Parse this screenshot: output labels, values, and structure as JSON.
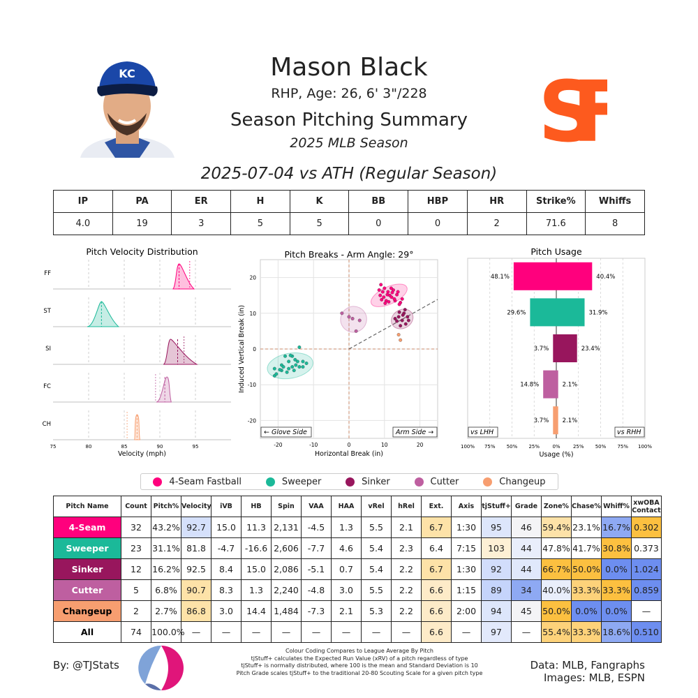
{
  "header": {
    "name": "Mason Black",
    "bio": "RHP, Age: 26, 6' 3\"/228",
    "title": "Season Pitching Summary",
    "season": "2025 MLB Season",
    "game": "2025-07-04 vs ATH (Regular Season)",
    "logo_text": "SF",
    "cap_text": "KC"
  },
  "colors": {
    "4-Seam Fastball": "#FF007D",
    "Sweeper": "#1BB999",
    "Sinker": "#98165D",
    "Cutter": "#BE5FA0",
    "Changeup": "#F79E70"
  },
  "stat_line": {
    "headers": [
      "IP",
      "PA",
      "ER",
      "H",
      "K",
      "BB",
      "HBP",
      "HR",
      "Strike%",
      "Whiffs"
    ],
    "values": [
      "4.0",
      "19",
      "3",
      "5",
      "5",
      "0",
      "0",
      "2",
      "71.6",
      "8"
    ]
  },
  "legend": [
    "4-Seam Fastball",
    "Sweeper",
    "Sinker",
    "Cutter",
    "Changeup"
  ],
  "chart_data": [
    {
      "type": "area",
      "title": "Pitch Velocity Distribution",
      "xlabel": "Velocity (mph)",
      "xlim": [
        75,
        100
      ],
      "x_ticks": [
        "75",
        "80",
        "85",
        "90",
        "95"
      ],
      "rows": [
        {
          "label": "FF",
          "color": "#FF007D",
          "min": 91.8,
          "max": 94.8,
          "peak": 92.7,
          "mean": 92.7,
          "league_mean": 94.2
        },
        {
          "label": "ST",
          "color": "#1BB999",
          "min": 79.8,
          "max": 84.2,
          "peak": 81.8,
          "mean": 81.8,
          "league_mean": null
        },
        {
          "label": "SI",
          "color": "#98165D",
          "min": 90.5,
          "max": 95.2,
          "peak": 91.5,
          "mean": 92.5,
          "league_mean": 93.4
        },
        {
          "label": "FC",
          "color": "#BE5FA0",
          "min": 89.5,
          "max": 91.6,
          "peak": 91.0,
          "mean": 90.7,
          "league_mean": 89.4
        },
        {
          "label": "CH",
          "color": "#F79E70",
          "min": 86.4,
          "max": 87.2,
          "peak": 86.8,
          "mean": 86.8,
          "league_mean": 85.4
        }
      ]
    },
    {
      "type": "scatter",
      "title": "Pitch Breaks - Arm Angle: 29°",
      "xlabel": "Horizontal Break (in)",
      "ylabel": "Induced Vertical Break (in)",
      "xlim": [
        -25,
        25
      ],
      "ylim": [
        -25,
        25
      ],
      "x_ticks": [
        "-20",
        "-10",
        "0",
        "10",
        "20"
      ],
      "y_ticks": [
        "20",
        "10",
        "0",
        "-10",
        "-20"
      ],
      "glove_label": "← Glove Side",
      "arm_label": "Arm Side →",
      "arm_angle_deg": 29,
      "series": [
        {
          "name": "4-Seam Fastball",
          "color": "#FF007D",
          "ellipse": {
            "cx": 11.3,
            "cy": 15.0,
            "rx": 5.5,
            "ry": 2.4,
            "angle": -25
          },
          "points": [
            [
              8.5,
              16.5
            ],
            [
              9.0,
              18.0
            ],
            [
              10.0,
              17.0
            ],
            [
              11.0,
              16.0
            ],
            [
              11.5,
              15.0
            ],
            [
              12.0,
              14.5
            ],
            [
              13.0,
              13.5
            ],
            [
              14.5,
              13.0
            ],
            [
              8.8,
              15.0
            ],
            [
              9.8,
              14.5
            ],
            [
              10.5,
              13.5
            ],
            [
              12.5,
              16.5
            ],
            [
              13.5,
              15.2
            ],
            [
              15.0,
              14.0
            ],
            [
              9.5,
              16.0
            ],
            [
              10.8,
              15.2
            ],
            [
              11.9,
              17.0
            ],
            [
              12.8,
              14.0
            ],
            [
              13.8,
              16.0
            ],
            [
              10.2,
              12.8
            ],
            [
              14.2,
              12.5
            ],
            [
              11.2,
              13.2
            ],
            [
              9.2,
              13.8
            ],
            [
              12.2,
              15.8
            ]
          ]
        },
        {
          "name": "Sweeper",
          "color": "#1BB999",
          "ellipse": {
            "cx": -16.6,
            "cy": -4.7,
            "rx": 6.5,
            "ry": 3.5,
            "angle": -10
          },
          "points": [
            [
              -21,
              -7.5
            ],
            [
              -21,
              -5.5
            ],
            [
              -19,
              -6
            ],
            [
              -19,
              -4.5
            ],
            [
              -17,
              -5.5
            ],
            [
              -17,
              -3.5
            ],
            [
              -16,
              -5
            ],
            [
              -15,
              -4.5
            ],
            [
              -14.5,
              -3.5
            ],
            [
              -14,
              -5
            ],
            [
              -13,
              -3.5
            ],
            [
              -13,
              -5
            ],
            [
              -18,
              -2
            ],
            [
              -16,
              -2
            ],
            [
              -14,
              0.5
            ],
            [
              -15.5,
              -6
            ],
            [
              -20.5,
              -7
            ],
            [
              -17.5,
              -6.5
            ],
            [
              -12,
              -4
            ],
            [
              -16.5,
              -1.8
            ],
            [
              -19.5,
              -5.8
            ],
            [
              -18.5,
              -5
            ],
            [
              -15.2,
              -3
            ]
          ]
        },
        {
          "name": "Sinker",
          "color": "#98165D",
          "ellipse": {
            "cx": 15.0,
            "cy": 8.4,
            "rx": 3.2,
            "ry": 2.6,
            "angle": -30
          },
          "points": [
            [
              13,
              8.5
            ],
            [
              14,
              9
            ],
            [
              15,
              8
            ],
            [
              15.5,
              10
            ],
            [
              16,
              7
            ],
            [
              16.5,
              9
            ],
            [
              14.5,
              6.5
            ],
            [
              15.8,
              11
            ],
            [
              13.5,
              7.8
            ],
            [
              16.8,
              8
            ],
            [
              15.2,
              9.5
            ],
            [
              14.2,
              10.3
            ]
          ]
        },
        {
          "name": "Cutter",
          "color": "#BE5FA0",
          "ellipse": {
            "cx": 1.3,
            "cy": 8.3,
            "rx": 3.7,
            "ry": 3.6,
            "angle": -30
          },
          "points": [
            [
              -2,
              10
            ],
            [
              0,
              9
            ],
            [
              1,
              8.5
            ],
            [
              2,
              5
            ],
            [
              3,
              8
            ]
          ]
        },
        {
          "name": "Changeup",
          "color": "#F79E70",
          "ellipse": null,
          "points": [
            [
              14,
              4
            ],
            [
              14.5,
              2.5
            ]
          ]
        }
      ]
    },
    {
      "type": "bar",
      "title": "Pitch Usage",
      "xlabel": "Usage (%)",
      "xlim": [
        -100,
        100
      ],
      "x_ticks": [
        "100%",
        "75%",
        "50%",
        "25%",
        "0%",
        "25%",
        "50%",
        "75%",
        "100%"
      ],
      "lhh_label": "vs LHH",
      "rhh_label": "vs RHH",
      "categories": [
        "4-Seam Fastball",
        "Sweeper",
        "Sinker",
        "Cutter",
        "Changeup"
      ],
      "series": [
        {
          "name": "vs LHH",
          "values": [
            48.1,
            29.6,
            3.7,
            14.8,
            3.7
          ],
          "labels": [
            "48.1%",
            "29.6%",
            "3.7%",
            "14.8%",
            "3.7%"
          ]
        },
        {
          "name": "vs RHH",
          "values": [
            40.4,
            31.9,
            23.4,
            2.1,
            2.1
          ],
          "labels": [
            "40.4%",
            "31.9%",
            "23.4%",
            "2.1%",
            "2.1%"
          ]
        }
      ],
      "colors": [
        "#FF007D",
        "#1BB999",
        "#98165D",
        "#BE5FA0",
        "#F79E70"
      ]
    },
    {
      "type": "table",
      "columns": [
        "Pitch Name",
        "Count",
        "Pitch%",
        "Velocity",
        "iVB",
        "HB",
        "Spin",
        "VAA",
        "HAA",
        "vRel",
        "hRel",
        "Ext.",
        "Axis",
        "tjStuff+",
        "Grade",
        "Zone%",
        "Chase%",
        "Whiff%",
        "xwOBA Contact"
      ],
      "rows": [
        {
          "pitch": "4-Seam",
          "pitch_color": "#FF007D",
          "pitch_text": "#fff",
          "cells": [
            "32",
            "43.2%",
            "92.7",
            "15.0",
            "11.3",
            "2,131",
            "-4.5",
            "1.3",
            "5.5",
            "2.1",
            "6.7",
            "1:30",
            "95",
            "46",
            "59.4%",
            "23.1%",
            "16.7%",
            "0.302"
          ],
          "cell_colors": {
            "3": "#d5e0fb",
            "11": "#fde2a8",
            "13": "#dde6fb",
            "14": "#f4f4f6",
            "15": "#fde2a8",
            "16": "#ffffff",
            "17": "#8ea9f3",
            "18": "#fcc040"
          }
        },
        {
          "pitch": "Sweeper",
          "pitch_color": "#1BB999",
          "pitch_text": "#fff",
          "cells": [
            "23",
            "31.1%",
            "81.8",
            "-4.7",
            "-16.6",
            "2,606",
            "-7.7",
            "4.6",
            "5.4",
            "2.3",
            "6.4",
            "7:15",
            "103",
            "44",
            "47.8%",
            "41.7%",
            "30.8%",
            "0.373"
          ],
          "cell_colors": {
            "13": "#fdf0d5",
            "14": "#e9eefb",
            "17": "#fcc040",
            "19": "#d5e0fb"
          }
        },
        {
          "pitch": "Sinker",
          "pitch_color": "#98165D",
          "pitch_text": "#fff",
          "cells": [
            "12",
            "16.2%",
            "92.5",
            "8.4",
            "15.0",
            "2,086",
            "-5.1",
            "0.7",
            "5.4",
            "2.2",
            "6.7",
            "1:30",
            "92",
            "44",
            "66.7%",
            "50.0%",
            "0.0%",
            "1.024"
          ],
          "cell_colors": {
            "11": "#fde2a8",
            "13": "#d2ddfb",
            "14": "#e0e8fb",
            "15": "#fcc040",
            "16": "#fcc040",
            "17": "#6d8ef0",
            "18": "#6d8ef0"
          }
        },
        {
          "pitch": "Cutter",
          "pitch_color": "#BE5FA0",
          "pitch_text": "#fff",
          "cells": [
            "5",
            "6.8%",
            "90.7",
            "8.3",
            "1.3",
            "2,240",
            "-4.8",
            "3.0",
            "5.5",
            "2.2",
            "6.6",
            "1:15",
            "89",
            "34",
            "40.0%",
            "33.3%",
            "33.3%",
            "0.859"
          ],
          "cell_colors": {
            "3": "#fde2a8",
            "11": "#fdebc8",
            "13": "#c5d4fb",
            "14": "#8ea9f3",
            "15": "#e9eefb",
            "16": "#fdd27a",
            "17": "#fcc040",
            "18": "#6d8ef0"
          }
        },
        {
          "pitch": "Changeup",
          "pitch_color": "#F79E70",
          "pitch_text": "#000",
          "cells": [
            "2",
            "2.7%",
            "86.8",
            "3.0",
            "14.4",
            "1,484",
            "-7.3",
            "2.1",
            "5.3",
            "2.2",
            "6.6",
            "2:00",
            "94",
            "45",
            "50.0%",
            "0.0%",
            "0.0%",
            "—"
          ],
          "cell_colors": {
            "3": "#fde2a8",
            "11": "#fdebc8",
            "13": "#dde6fb",
            "14": "#f4f4f6",
            "15": "#fcc040",
            "16": "#6d8ef0",
            "17": "#6d8ef0"
          }
        },
        {
          "pitch": "All",
          "pitch_color": "#ffffff",
          "pitch_text": "#000",
          "cells": [
            "74",
            "100.0%",
            "—",
            "—",
            "—",
            "—",
            "—",
            "—",
            "—",
            "—",
            "6.6",
            "—",
            "97",
            "—",
            "55.4%",
            "33.3%",
            "18.6%",
            "0.510"
          ],
          "cell_colors": {
            "11": "#fdebc8",
            "13": "#e2e9fb",
            "15": "#fdd27a",
            "16": "#fdd27a",
            "17": "#8ea9f3",
            "18": "#6d8ef0"
          }
        }
      ]
    }
  ],
  "footer": {
    "byline": "By: @TJStats",
    "notes": [
      "Colour Coding Compares to League Average By Pitch",
      "tjStuff+ calculates the Expected Run Value (xRV) of a pitch regardless of type",
      "tjStuff+ is normally distributed, where 100 is the mean and Standard Deviation is 10",
      "Pitch Grade scales tjStuff+ to the traditional 20-80 Scouting Scale for a given pitch type"
    ],
    "data_source": "Data: MLB, Fangraphs",
    "images_source": "Images: MLB, ESPN"
  }
}
